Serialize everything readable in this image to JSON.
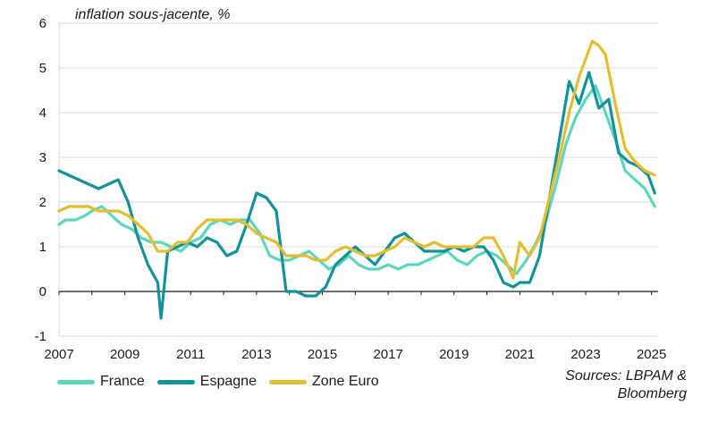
{
  "chart_data": {
    "type": "line",
    "title": "",
    "ylabel": "inflation sous-jacente, %",
    "xlabel": "",
    "xlim": [
      2007,
      2025.2
    ],
    "ylim": [
      -1,
      6
    ],
    "yticks": [
      -1,
      0,
      1,
      2,
      3,
      4,
      5,
      6
    ],
    "xticks": [
      2007,
      2009,
      2011,
      2013,
      2015,
      2017,
      2019,
      2021,
      2023,
      2025
    ],
    "grid": true,
    "legend_position": "bottom-left",
    "colors": {
      "France": "#5ed6bd",
      "Espagne": "#13929a",
      "Zone Euro": "#e3bd32"
    },
    "series": [
      {
        "name": "France",
        "x": [
          2007.0,
          2007.2,
          2007.5,
          2007.8,
          2008.0,
          2008.3,
          2008.6,
          2008.9,
          2009.2,
          2009.5,
          2009.8,
          2010.1,
          2010.4,
          2010.7,
          2011.0,
          2011.3,
          2011.6,
          2011.9,
          2012.2,
          2012.5,
          2012.8,
          2013.1,
          2013.4,
          2013.7,
          2014.0,
          2014.3,
          2014.6,
          2014.9,
          2015.2,
          2015.5,
          2015.8,
          2016.1,
          2016.4,
          2016.7,
          2017.0,
          2017.3,
          2017.6,
          2017.9,
          2018.2,
          2018.5,
          2018.8,
          2019.1,
          2019.4,
          2019.7,
          2020.0,
          2020.3,
          2020.6,
          2020.9,
          2021.2,
          2021.5,
          2021.8,
          2022.1,
          2022.4,
          2022.7,
          2023.0,
          2023.3,
          2023.6,
          2023.9,
          2024.2,
          2024.5,
          2024.8,
          2025.1
        ],
        "values": [
          1.5,
          1.6,
          1.6,
          1.7,
          1.8,
          1.9,
          1.7,
          1.5,
          1.4,
          1.2,
          1.1,
          1.1,
          1.0,
          0.9,
          1.1,
          1.2,
          1.5,
          1.6,
          1.5,
          1.6,
          1.6,
          1.3,
          0.8,
          0.7,
          0.7,
          0.8,
          0.9,
          0.7,
          0.5,
          0.6,
          0.8,
          0.6,
          0.5,
          0.5,
          0.6,
          0.5,
          0.6,
          0.6,
          0.7,
          0.8,
          0.9,
          0.7,
          0.6,
          0.8,
          0.9,
          0.8,
          0.6,
          0.4,
          0.7,
          1.1,
          1.6,
          2.4,
          3.3,
          3.9,
          4.3,
          4.6,
          4.0,
          3.4,
          2.7,
          2.5,
          2.3,
          1.9
        ]
      },
      {
        "name": "Espagne",
        "x": [
          2007.0,
          2007.3,
          2007.6,
          2007.9,
          2008.2,
          2008.5,
          2008.8,
          2009.1,
          2009.4,
          2009.7,
          2010.0,
          2010.1,
          2010.3,
          2010.6,
          2010.9,
          2011.2,
          2011.5,
          2011.8,
          2012.1,
          2012.4,
          2012.7,
          2013.0,
          2013.3,
          2013.6,
          2013.9,
          2014.2,
          2014.5,
          2014.8,
          2015.1,
          2015.4,
          2015.7,
          2016.0,
          2016.3,
          2016.6,
          2016.9,
          2017.2,
          2017.5,
          2017.8,
          2018.1,
          2018.4,
          2018.7,
          2019.0,
          2019.3,
          2019.6,
          2019.9,
          2020.2,
          2020.5,
          2020.8,
          2021.0,
          2021.3,
          2021.6,
          2021.9,
          2022.2,
          2022.5,
          2022.8,
          2023.1,
          2023.4,
          2023.7,
          2024.0,
          2024.3,
          2024.6,
          2024.9,
          2025.1
        ],
        "values": [
          2.7,
          2.6,
          2.5,
          2.4,
          2.3,
          2.4,
          2.5,
          2.0,
          1.2,
          0.6,
          0.2,
          -0.6,
          0.9,
          1.0,
          1.1,
          1.0,
          1.2,
          1.1,
          0.8,
          0.9,
          1.5,
          2.2,
          2.1,
          1.8,
          0.0,
          0.0,
          -0.1,
          -0.1,
          0.1,
          0.6,
          0.8,
          1.0,
          0.8,
          0.6,
          0.9,
          1.2,
          1.3,
          1.1,
          0.9,
          0.9,
          0.9,
          1.0,
          0.9,
          1.0,
          1.0,
          0.7,
          0.2,
          0.1,
          0.2,
          0.2,
          0.8,
          2.1,
          3.4,
          4.7,
          4.2,
          4.9,
          4.1,
          4.3,
          3.1,
          2.9,
          2.8,
          2.6,
          2.2
        ]
      },
      {
        "name": "Zone Euro",
        "x": [
          2007.0,
          2007.3,
          2007.6,
          2007.9,
          2008.2,
          2008.5,
          2008.8,
          2009.1,
          2009.4,
          2009.7,
          2010.0,
          2010.3,
          2010.6,
          2010.9,
          2011.2,
          2011.5,
          2011.8,
          2012.1,
          2012.4,
          2012.7,
          2013.0,
          2013.3,
          2013.6,
          2013.9,
          2014.2,
          2014.5,
          2014.8,
          2015.1,
          2015.4,
          2015.7,
          2016.0,
          2016.3,
          2016.6,
          2016.9,
          2017.2,
          2017.5,
          2017.8,
          2018.1,
          2018.4,
          2018.7,
          2019.0,
          2019.3,
          2019.6,
          2019.9,
          2020.2,
          2020.5,
          2020.8,
          2021.0,
          2021.3,
          2021.6,
          2021.9,
          2022.2,
          2022.5,
          2022.8,
          2023.0,
          2023.2,
          2023.4,
          2023.6,
          2023.9,
          2024.2,
          2024.5,
          2024.8,
          2025.1
        ],
        "values": [
          1.8,
          1.9,
          1.9,
          1.9,
          1.8,
          1.8,
          1.8,
          1.7,
          1.5,
          1.3,
          0.9,
          0.9,
          1.1,
          1.1,
          1.4,
          1.6,
          1.6,
          1.6,
          1.6,
          1.5,
          1.3,
          1.2,
          1.1,
          0.8,
          0.8,
          0.8,
          0.7,
          0.7,
          0.9,
          1.0,
          0.9,
          0.8,
          0.8,
          0.9,
          1.0,
          1.2,
          1.1,
          1.0,
          1.1,
          1.0,
          1.0,
          1.0,
          1.0,
          1.2,
          1.2,
          0.8,
          0.3,
          1.1,
          0.8,
          1.2,
          2.1,
          3.0,
          4.0,
          4.8,
          5.2,
          5.6,
          5.5,
          5.3,
          4.2,
          3.2,
          2.9,
          2.7,
          2.6
        ]
      }
    ]
  },
  "legend": {
    "france_label": "France",
    "espagne_label": "Espagne",
    "zone_euro_label": "Zone Euro"
  },
  "sources": {
    "line1": "Sources: LBPAM &",
    "line2": "Bloomberg"
  }
}
